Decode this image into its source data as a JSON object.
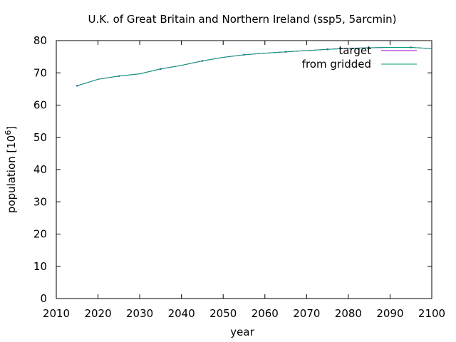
{
  "chart_data": {
    "type": "line",
    "title": "U.K. of Great Britain and Northern Ireland (ssp5, 5arcmin)",
    "xlabel": "year",
    "ylabel_main": "population [10",
    "ylabel_exp": "6",
    "ylabel_close": "]",
    "xlim": [
      2010,
      2100
    ],
    "ylim": [
      0,
      80
    ],
    "xticks": [
      2010,
      2020,
      2030,
      2040,
      2050,
      2060,
      2070,
      2080,
      2090,
      2100
    ],
    "yticks": [
      0,
      10,
      20,
      30,
      40,
      50,
      60,
      70,
      80
    ],
    "grid": false,
    "legend_position": "top-right",
    "colors": {
      "target": "#9400d3",
      "from_gridded": "#009e73"
    },
    "series": [
      {
        "name": "target",
        "x": [
          2015,
          2020,
          2025,
          2030,
          2035,
          2040,
          2045,
          2050,
          2055,
          2060,
          2065,
          2070,
          2075,
          2080,
          2085,
          2090,
          2095,
          2100
        ],
        "values": [
          66.0,
          68.0,
          69.0,
          69.7,
          71.2,
          72.3,
          73.7,
          74.8,
          75.6,
          76.1,
          76.5,
          76.9,
          77.3,
          77.6,
          77.8,
          77.9,
          77.9,
          77.5
        ]
      },
      {
        "name": "from gridded",
        "x": [
          2015,
          2020,
          2025,
          2030,
          2035,
          2040,
          2045,
          2050,
          2055,
          2060,
          2065,
          2070,
          2075,
          2080,
          2085,
          2090,
          2095,
          2100
        ],
        "values": [
          66.0,
          68.0,
          69.0,
          69.7,
          71.2,
          72.3,
          73.7,
          74.8,
          75.6,
          76.1,
          76.5,
          76.9,
          77.3,
          77.6,
          77.8,
          77.9,
          77.9,
          77.5
        ]
      }
    ]
  }
}
